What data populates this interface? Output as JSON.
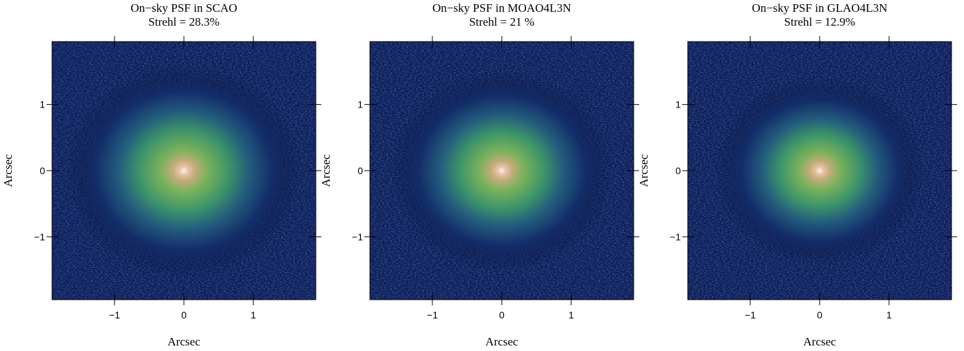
{
  "chart_data": [
    {
      "type": "image",
      "title": "On−sky PSF in SCAO",
      "subtitle": "Strehl = 28.3%",
      "xlabel": "Arcsec",
      "ylabel": "Arcsec",
      "xlim": [
        -1.9,
        1.9
      ],
      "ylim": [
        -1.95,
        1.95
      ],
      "xticks": [
        {
          "value": -1,
          "label": "−1"
        },
        0,
        1
      ],
      "yticks": [
        {
          "value": -1,
          "label": "−1"
        },
        0,
        1
      ]
    },
    {
      "type": "image",
      "title": "On−sky PSF in MOAO4L3N",
      "subtitle": "Strehl = 21 %",
      "xlabel": "Arcsec",
      "ylabel": "Arcsec",
      "xlim": [
        -1.9,
        1.9
      ],
      "ylim": [
        -1.95,
        1.95
      ],
      "xticks": [
        {
          "value": -1,
          "label": "−1"
        },
        0,
        1
      ],
      "yticks": [
        {
          "value": -1,
          "label": "−1"
        },
        0,
        1
      ]
    },
    {
      "type": "image",
      "title": "On−sky PSF in GLAO4L3N",
      "subtitle": "Strehl = 12.9%",
      "xlabel": "Arcsec",
      "ylabel": "Arcsec",
      "xlim": [
        -1.9,
        1.9
      ],
      "ylim": [
        -1.95,
        1.95
      ],
      "xticks": [
        {
          "value": -1,
          "label": "−1"
        },
        0,
        1
      ],
      "yticks": [
        {
          "value": -1,
          "label": "−1"
        },
        0,
        1
      ]
    }
  ]
}
